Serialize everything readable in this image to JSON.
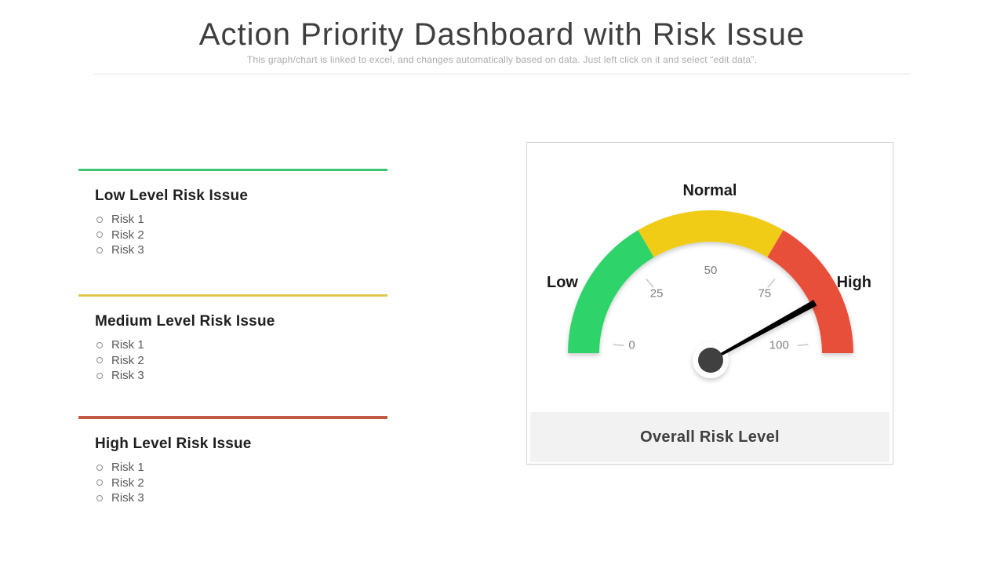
{
  "header": {
    "title": "Action Priority Dashboard with Risk Issue",
    "subtitle": "This graph/chart is linked to excel, and changes automatically based on data. Just left click on it and select “edit data”."
  },
  "sections": [
    {
      "id": "low",
      "accent": "#3cc471",
      "heading": "Low Level Risk Issue",
      "items": [
        "Risk 1",
        "Risk 2",
        "Risk 3"
      ]
    },
    {
      "id": "medium",
      "accent": "#e2c74f",
      "heading": "Medium Level Risk Issue",
      "items": [
        "Risk 1",
        "Risk 2",
        "Risk 3"
      ]
    },
    {
      "id": "high",
      "accent": "#bf5b45",
      "heading": "High Level Risk Issue",
      "items": [
        "Risk 1",
        "Risk 2",
        "Risk 3"
      ]
    }
  ],
  "gauge": {
    "labels": {
      "left": "Low",
      "top": "Normal",
      "right": "High"
    },
    "footer": "Overall Risk Level",
    "colors": {
      "needle": "#000000",
      "hub": "#3f3f3f",
      "hub_ring": "#ffffff",
      "tick": "#c9c9c9",
      "tick_text": "#7f7f7f",
      "footer_bg": "#f2f2f2",
      "footer_text": "#404040"
    }
  },
  "chart_data": {
    "type": "gauge",
    "title": "Overall Risk Level",
    "min": 0,
    "max": 100,
    "value": 84,
    "tick_labels": [
      "0",
      "25",
      "50",
      "75",
      "100"
    ],
    "segments": [
      {
        "label": "Low",
        "from": 0,
        "to": 33,
        "color": "#2fd36b"
      },
      {
        "label": "Normal",
        "from": 33,
        "to": 67,
        "color": "#f0cc16"
      },
      {
        "label": "High",
        "from": 67,
        "to": 100,
        "color": "#e8503a"
      }
    ]
  }
}
